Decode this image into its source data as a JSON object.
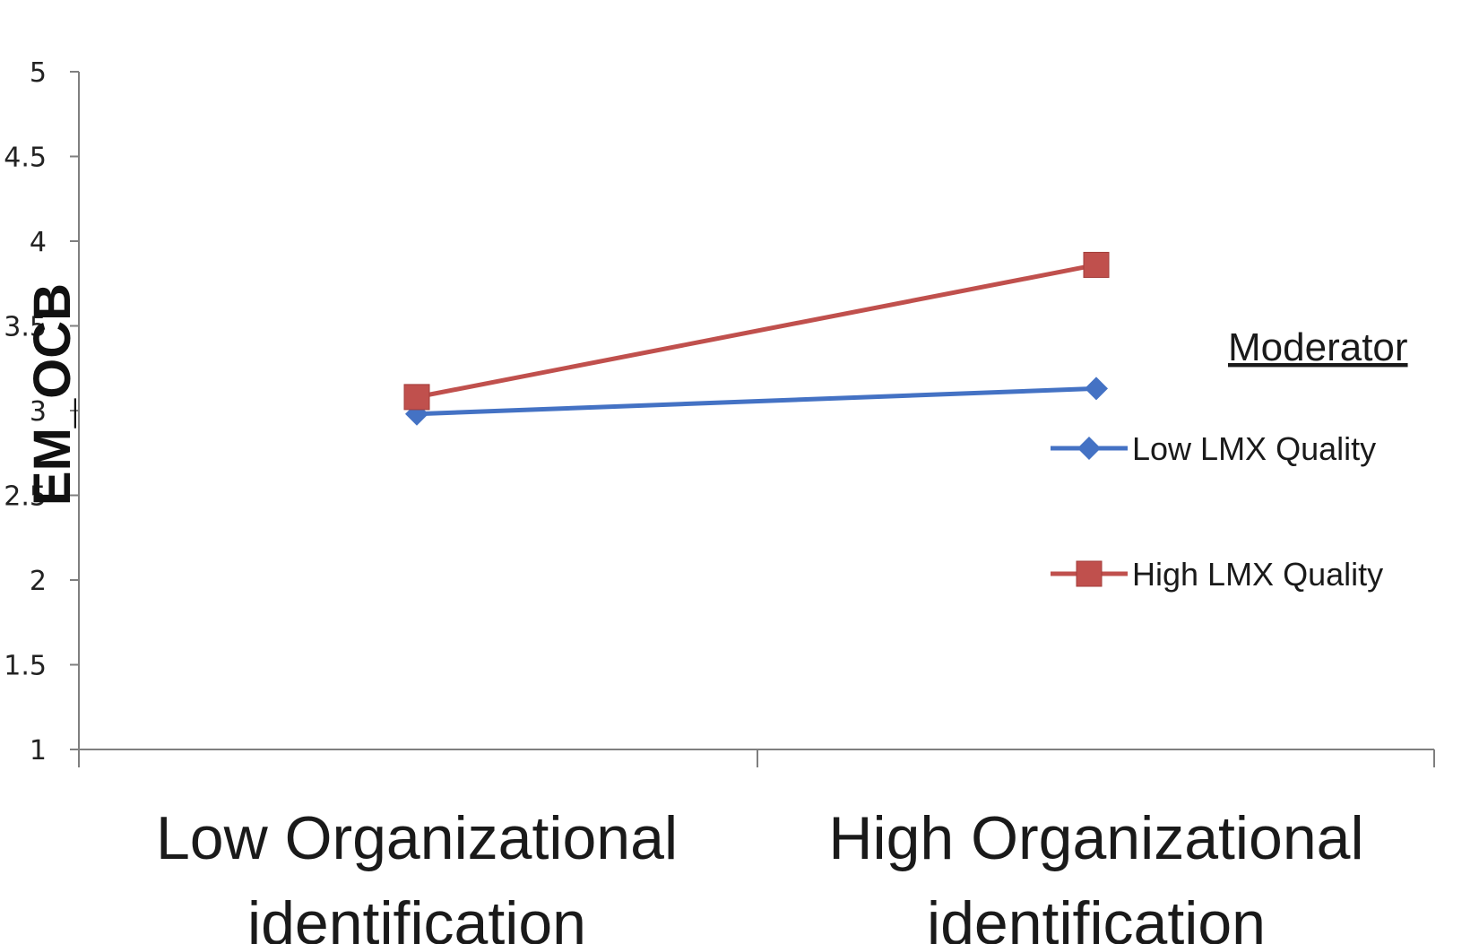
{
  "chart_data": {
    "type": "line",
    "ylabel": "EM_OCB",
    "xlabel": "",
    "ylim": [
      1,
      5
    ],
    "yticks": [
      "1",
      "1.5",
      "2",
      "2.5",
      "3",
      "3.5",
      "4",
      "4.5",
      "5"
    ],
    "categories": [
      [
        "Low Organizational",
        "identification"
      ],
      [
        "High Organizational",
        "identification"
      ]
    ],
    "series": [
      {
        "name": "Low LMX Quality",
        "values": [
          2.98,
          3.13
        ],
        "color": "#4472C4",
        "marker": "diamond"
      },
      {
        "name": "High LMX Quality",
        "values": [
          3.08,
          3.86
        ],
        "color": "#C0504D",
        "marker": "square"
      }
    ],
    "legend": {
      "title": "Moderator",
      "position": "right"
    },
    "grid": false
  }
}
